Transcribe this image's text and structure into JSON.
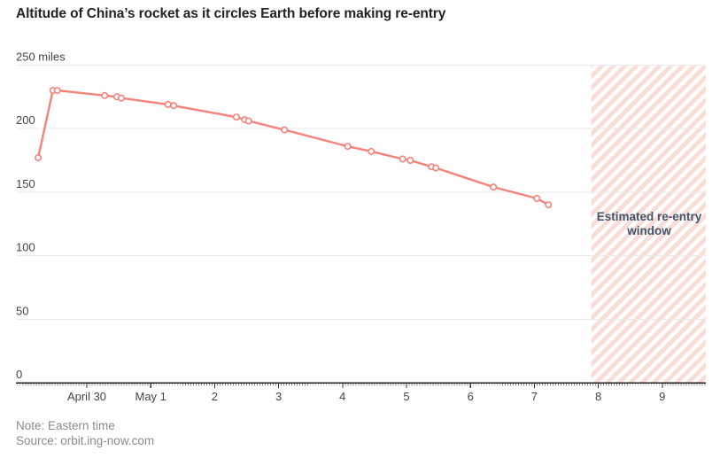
{
  "title": "Altitude of China’s rocket as it circles Earth before making re-entry",
  "note": "Note: Eastern time",
  "source": "Source: orbit.ing-now.com",
  "colors": {
    "line": "#f5837a",
    "marker_fill": "#ffffff",
    "hatch_pink": "#fadcd6",
    "annotation_text": "#44536a",
    "grid": "#e9e9e9",
    "axis": "#222222",
    "tick_minor": "#8c8c8c",
    "tick_major": "#333333",
    "axis_label": "#444444",
    "muted_text": "#8a8a8a",
    "title_text": "#222222"
  },
  "chart_data": {
    "type": "line",
    "title": "Altitude of China’s rocket as it circles Earth before making re-entry",
    "ylabel": "miles",
    "y_range": [
      0,
      250
    ],
    "y_ticks": [
      {
        "value": 0,
        "label": "0"
      },
      {
        "value": 50,
        "label": "50"
      },
      {
        "value": 100,
        "label": "100"
      },
      {
        "value": 150,
        "label": "150"
      },
      {
        "value": 200,
        "label": "200"
      },
      {
        "value": 250,
        "label": "250 miles"
      }
    ],
    "x_unit": "days since April 29, 12 a.m. Eastern time",
    "x_range_days": [
      -0.11,
      10.68
    ],
    "x_ticks": [
      {
        "t": 1,
        "label": "April 30"
      },
      {
        "t": 2,
        "label": "May 1"
      },
      {
        "t": 3,
        "label": "2"
      },
      {
        "t": 4,
        "label": "3"
      },
      {
        "t": 5,
        "label": "4"
      },
      {
        "t": 6,
        "label": "5"
      },
      {
        "t": 7,
        "label": "6"
      },
      {
        "t": 8,
        "label": "7"
      },
      {
        "t": 9,
        "label": "8"
      },
      {
        "t": 10,
        "label": "9"
      }
    ],
    "minor_tick_interval_days": 0.0416667,
    "points": [
      {
        "t": 0.24,
        "altitude_miles": 177
      },
      {
        "t": 0.47,
        "altitude_miles": 230
      },
      {
        "t": 0.54,
        "altitude_miles": 230
      },
      {
        "t": 1.28,
        "altitude_miles": 226
      },
      {
        "t": 1.47,
        "altitude_miles": 225
      },
      {
        "t": 1.54,
        "altitude_miles": 224
      },
      {
        "t": 2.27,
        "altitude_miles": 219
      },
      {
        "t": 2.36,
        "altitude_miles": 218
      },
      {
        "t": 3.34,
        "altitude_miles": 209
      },
      {
        "t": 3.47,
        "altitude_miles": 207
      },
      {
        "t": 3.53,
        "altitude_miles": 206
      },
      {
        "t": 4.09,
        "altitude_miles": 199
      },
      {
        "t": 5.08,
        "altitude_miles": 186
      },
      {
        "t": 5.45,
        "altitude_miles": 182
      },
      {
        "t": 5.94,
        "altitude_miles": 176
      },
      {
        "t": 6.06,
        "altitude_miles": 175
      },
      {
        "t": 6.39,
        "altitude_miles": 170
      },
      {
        "t": 6.46,
        "altitude_miles": 169
      },
      {
        "t": 7.36,
        "altitude_miles": 154
      },
      {
        "t": 8.04,
        "altitude_miles": 145
      },
      {
        "t": 8.22,
        "altitude_miles": 140
      }
    ],
    "reentry_window": {
      "t_start": 8.89,
      "t_end": 10.68,
      "label": "Estimated re-entry window"
    },
    "legend": "none",
    "grid": "horizontal"
  }
}
